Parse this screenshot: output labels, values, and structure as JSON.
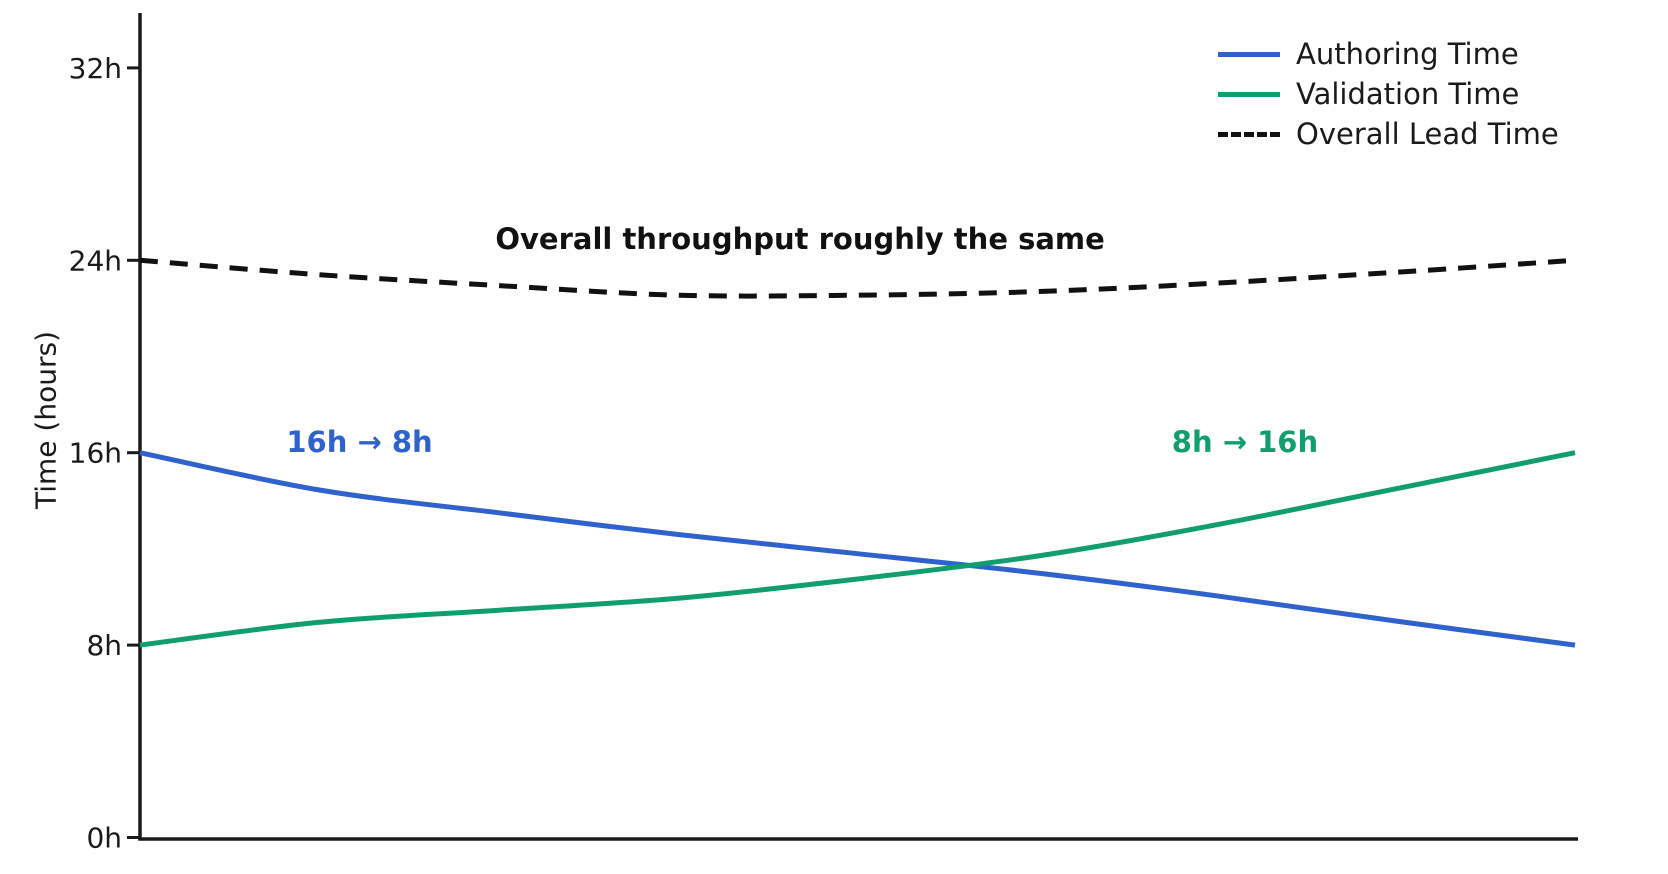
{
  "chart_data": {
    "type": "line",
    "title": "",
    "xlabel": "",
    "ylabel": "Time (hours)",
    "ylim": [
      0,
      34
    ],
    "x_range": [
      0,
      1
    ],
    "x_tick_labels_visible": false,
    "grid": false,
    "axis_color": "#1a1a1a",
    "background": "#ffffff",
    "yticks": [
      {
        "value": 0,
        "label": "0h"
      },
      {
        "value": 8,
        "label": "8h"
      },
      {
        "value": 16,
        "label": "16h"
      },
      {
        "value": 24,
        "label": "24h"
      },
      {
        "value": 32,
        "label": "32h"
      }
    ],
    "x": [
      0,
      0.125,
      0.25,
      0.375,
      0.5,
      0.625,
      0.75,
      0.875,
      1
    ],
    "series": [
      {
        "name": "Authoring Time",
        "color": "#2f62cb",
        "dash": false,
        "values": [
          16,
          14.45,
          13.5,
          12.6,
          11.8,
          11.0,
          10.05,
          9.0,
          8
        ]
      },
      {
        "name": "Validation Time",
        "color": "#119e6e",
        "dash": false,
        "values": [
          8,
          8.95,
          9.45,
          9.95,
          10.75,
          11.7,
          13.0,
          14.5,
          16
        ]
      },
      {
        "name": "Overall Lead Time",
        "color": "#111111",
        "dash": true,
        "values": [
          24,
          23.4,
          22.95,
          22.55,
          22.55,
          22.7,
          23.05,
          23.5,
          24
        ]
      }
    ],
    "legend_position": "top-right",
    "annotations": [
      {
        "text": "Overall throughput roughly the same",
        "x": 0.46,
        "hours": 24.9,
        "color": "#111111"
      },
      {
        "text": "16h → 8h",
        "x": 0.153,
        "hours": 16.45,
        "color": "#2f62cb"
      },
      {
        "text": "8h → 16h",
        "x": 0.77,
        "hours": 16.45,
        "color": "#119e6e"
      }
    ]
  }
}
